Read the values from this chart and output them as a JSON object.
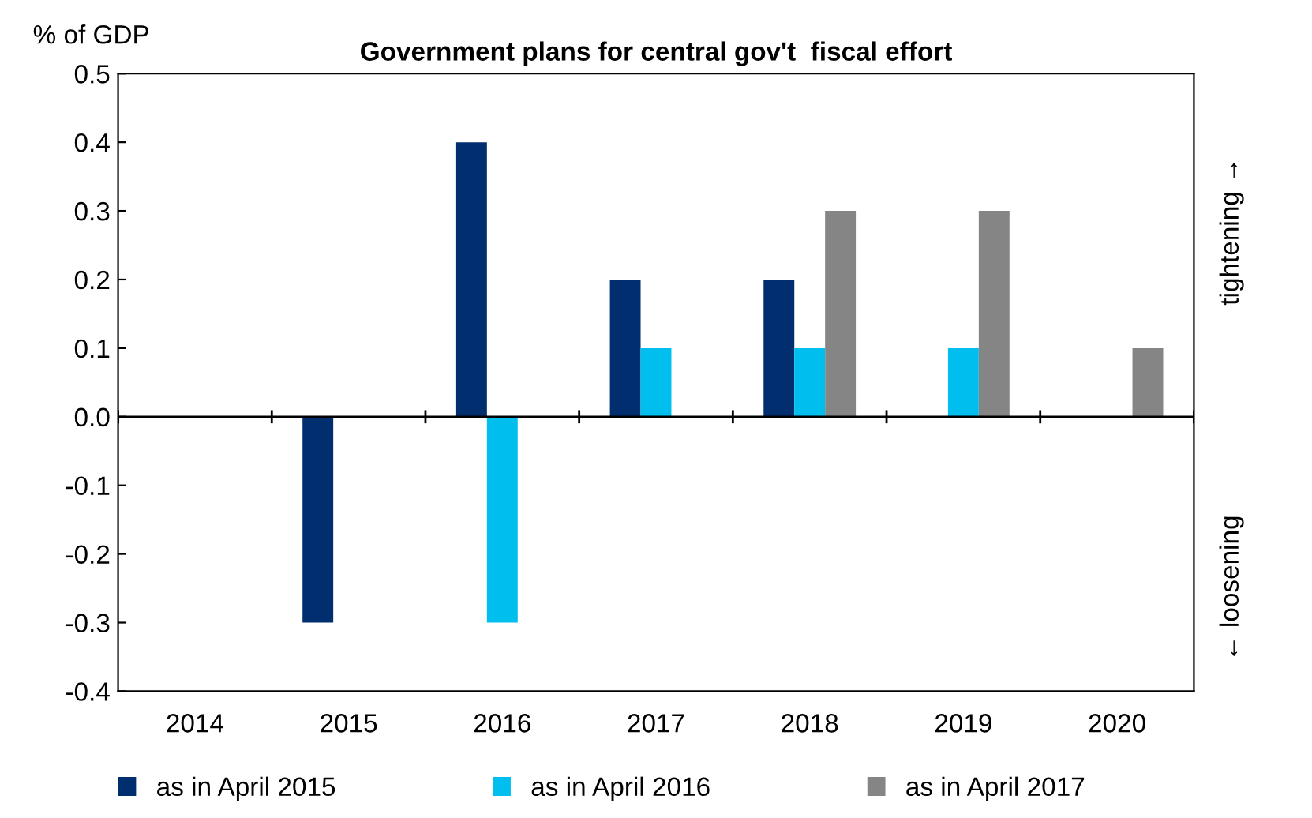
{
  "chart_data": {
    "type": "bar",
    "title": "Government plans for central gov't  fiscal effort",
    "ylabel": "% of GDP",
    "categories": [
      "2014",
      "2015",
      "2016",
      "2017",
      "2018",
      "2019",
      "2020"
    ],
    "series": [
      {
        "name": "as in April 2015",
        "color": "#002e6e",
        "values": [
          null,
          -0.3,
          0.4,
          0.2,
          0.2,
          null,
          null
        ]
      },
      {
        "name": "as in April 2016",
        "color": "#00bfef",
        "values": [
          null,
          null,
          -0.3,
          0.1,
          0.1,
          0.1,
          null
        ]
      },
      {
        "name": "as in April 2017",
        "color": "#858585",
        "values": [
          null,
          null,
          null,
          null,
          0.3,
          0.3,
          0.1
        ]
      }
    ],
    "ylim": [
      -0.4,
      0.5
    ],
    "yticks": [
      -0.4,
      -0.3,
      -0.2,
      -0.1,
      {
        "value": 0,
        "label": "0.0"
      },
      0.1,
      0.2,
      0.3,
      0.4,
      0.5
    ],
    "ref_lines": [
      {
        "axis": "y",
        "value": 0,
        "color": "#000000"
      }
    ],
    "annotations": [
      "tightening →",
      "← loosening"
    ],
    "grid": false,
    "legend": "bottom"
  }
}
